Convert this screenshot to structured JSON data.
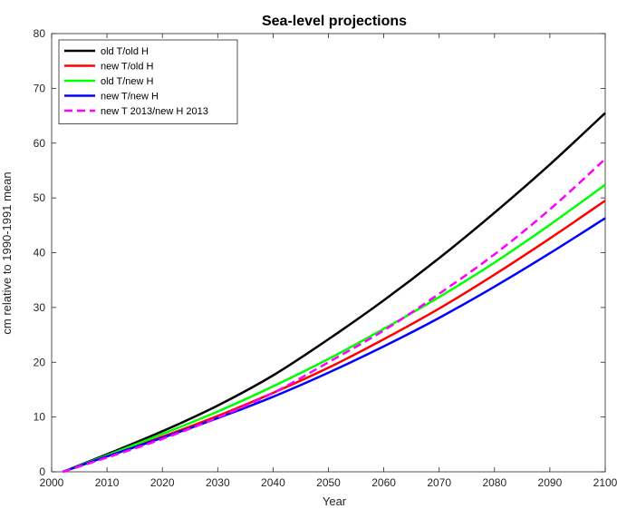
{
  "chart_data": {
    "type": "line",
    "title": "Sea-level projections",
    "xlabel": "Year",
    "ylabel": "cm relative to 1990-1991 mean",
    "xlim": [
      2000,
      2100
    ],
    "ylim": [
      0,
      80
    ],
    "xticks": [
      2000,
      2010,
      2020,
      2030,
      2040,
      2050,
      2060,
      2070,
      2080,
      2090,
      2100
    ],
    "yticks": [
      0,
      10,
      20,
      30,
      40,
      50,
      60,
      70,
      80
    ],
    "grid": false,
    "legend_position": "top-left",
    "x": [
      2002,
      2010,
      2020,
      2030,
      2040,
      2050,
      2060,
      2070,
      2080,
      2090,
      2100
    ],
    "series": [
      {
        "name": "old T/old H",
        "color": "#000000",
        "dash": "solid",
        "values": [
          0,
          3.2,
          7.4,
          12.1,
          17.6,
          24.2,
          31.3,
          39.0,
          47.3,
          56.1,
          65.5
        ]
      },
      {
        "name": "new T/old H",
        "color": "#ff0000",
        "dash": "solid",
        "values": [
          0,
          2.9,
          6.4,
          10.2,
          14.4,
          19.0,
          24.2,
          29.8,
          36.0,
          42.6,
          49.5
        ]
      },
      {
        "name": "old T/new H",
        "color": "#00ff00",
        "dash": "solid",
        "values": [
          0,
          3.0,
          6.9,
          11.0,
          15.6,
          20.6,
          26.1,
          31.9,
          38.2,
          45.1,
          52.4
        ]
      },
      {
        "name": "new T/new H",
        "color": "#0000ff",
        "dash": "solid",
        "values": [
          0,
          2.8,
          6.2,
          9.8,
          13.7,
          18.1,
          22.9,
          28.1,
          33.8,
          39.9,
          46.3
        ]
      },
      {
        "name": "new T 2013/new H 2013",
        "color": "#ff00ff",
        "dash": "dashed",
        "values": [
          0,
          2.6,
          6.0,
          9.9,
          14.4,
          20.0,
          25.8,
          32.5,
          39.7,
          47.9,
          57.1
        ]
      }
    ]
  }
}
